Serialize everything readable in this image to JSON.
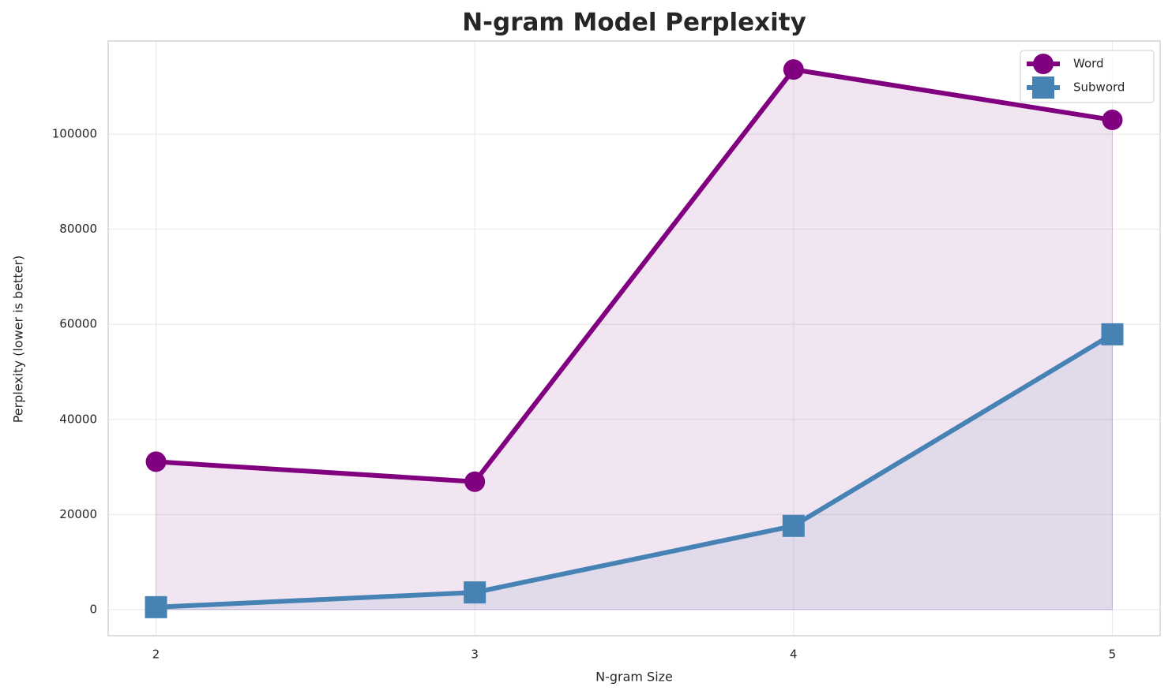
{
  "chart_data": {
    "type": "line",
    "title": "N-gram Model Perplexity",
    "x_label": "N-gram Size",
    "y_label": "Perplexity (lower is better)",
    "x": [
      2,
      3,
      4,
      5
    ],
    "series": [
      {
        "name": "Word",
        "color": "#800080",
        "marker": "circle",
        "values": [
          31100,
          26900,
          113600,
          103000
        ]
      },
      {
        "name": "Subword",
        "color": "#4682b4",
        "marker": "square",
        "values": [
          500,
          3600,
          17600,
          57900
        ]
      }
    ],
    "xlim": [
      1.85,
      5.15
    ],
    "xticks": [
      2,
      3,
      4,
      5
    ],
    "ylim": [
      -5500,
      119600
    ],
    "yticks": [
      0,
      20000,
      40000,
      60000,
      80000,
      100000
    ],
    "grid": true,
    "fill_area": true,
    "legend": "upper right"
  }
}
